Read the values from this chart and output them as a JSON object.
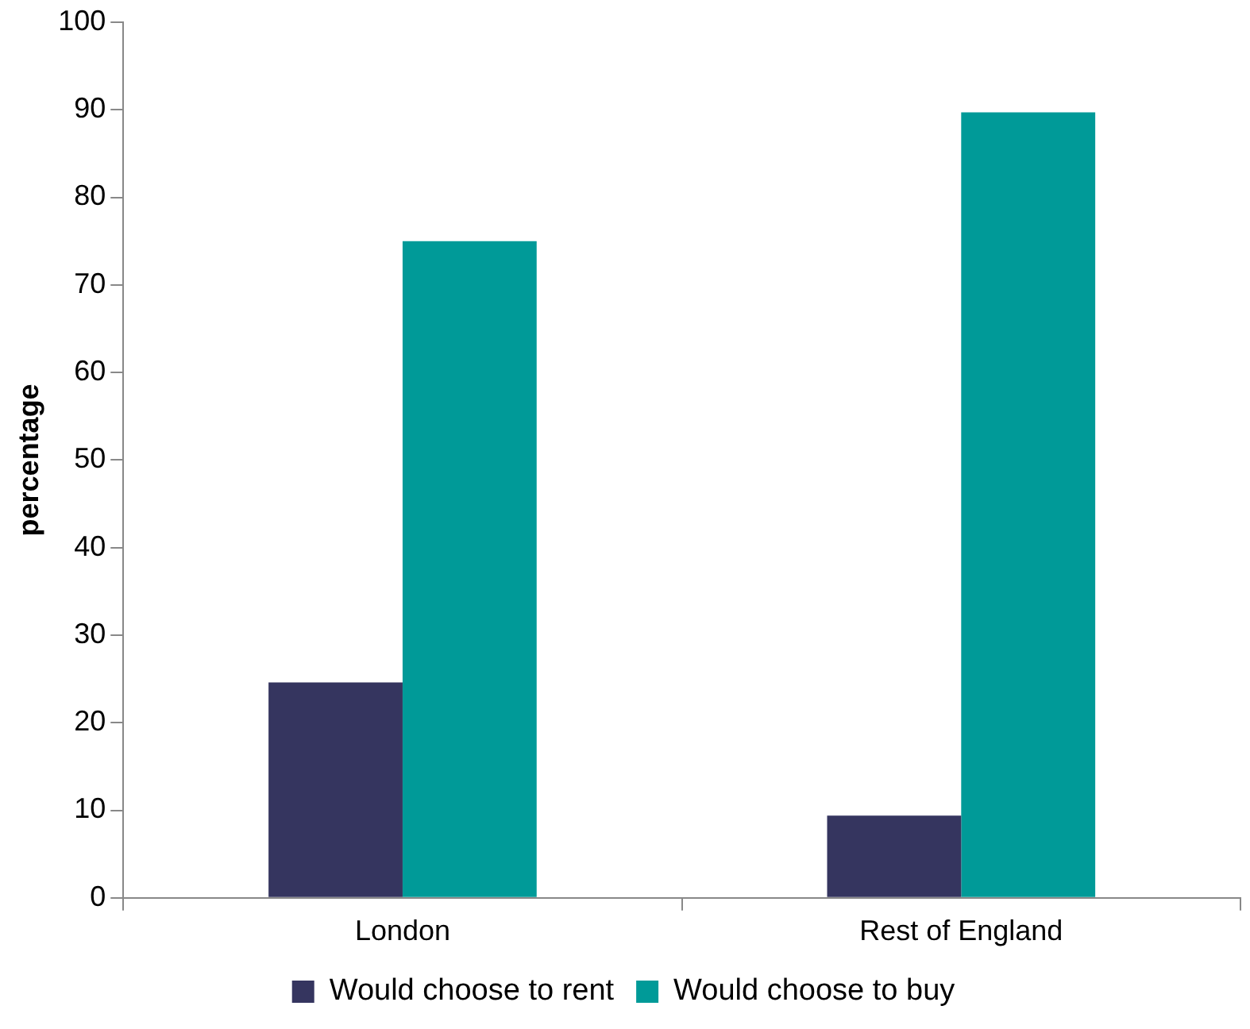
{
  "chart_data": {
    "type": "bar",
    "ylabel": "percentage",
    "categories": [
      "London",
      "Rest of England"
    ],
    "series": [
      {
        "name": "Would choose to rent",
        "color": "#35355f",
        "values": [
          24.6,
          9.4
        ]
      },
      {
        "name": "Would choose to buy",
        "color": "#009a98",
        "values": [
          75,
          89.7
        ]
      }
    ],
    "ylim": [
      0,
      100
    ],
    "yticks": [
      0,
      10,
      20,
      30,
      40,
      50,
      60,
      70,
      80,
      90,
      100
    ],
    "grid": false,
    "legend": "bottom"
  }
}
